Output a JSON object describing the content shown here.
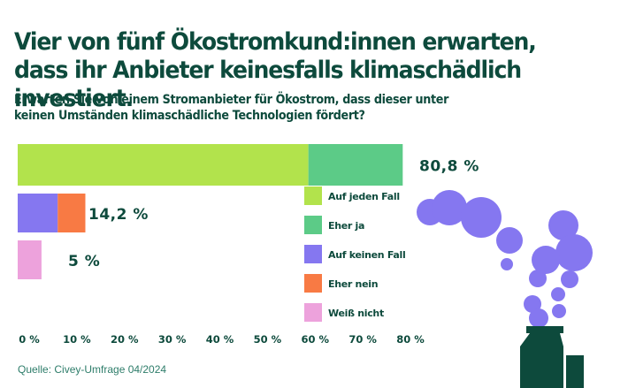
{
  "title": "Vier von fünf Ökostromkund:innen erwarten, dass ihr Anbieter keinesfalls klimaschädlich investiert.",
  "subtitle": "Erwarten Sie von einem Stromanbieter für Ökostrom, dass dieser unter keinen Umständen klimaschädliche Technologien fördert?",
  "source": "Quelle: Civey-Umfrage 04/2024",
  "illustration": "factory-smoke-icon",
  "chart_data": {
    "type": "bar",
    "orientation": "horizontal",
    "stacked": true,
    "xlim": [
      0,
      80
    ],
    "ticks": [
      "0 %",
      "10 %",
      "20 %",
      "30 %",
      "40 %",
      "50 %",
      "60 %",
      "70 %",
      "80 %"
    ],
    "tick_values": [
      0,
      10,
      20,
      30,
      40,
      50,
      60,
      70,
      80
    ],
    "legend_position": "right",
    "bars": [
      {
        "total_label": "80,8 %",
        "segments": [
          {
            "name": "Auf jeden Fall",
            "value": 61.0,
            "color": "#b2e34c"
          },
          {
            "name": "Eher ja",
            "value": 19.8,
            "color": "#5ccb87"
          }
        ]
      },
      {
        "total_label": "14,2 %",
        "segments": [
          {
            "name": "Auf keinen Fall",
            "value": 8.4,
            "color": "#8577f0"
          },
          {
            "name": "Eher nein",
            "value": 5.8,
            "color": "#f87a44"
          }
        ]
      },
      {
        "total_label": "5 %",
        "segments": [
          {
            "name": "Weiß nicht",
            "value": 5.0,
            "color": "#eda2dc"
          }
        ]
      }
    ],
    "legend": [
      {
        "label": "Auf jeden Fall",
        "color": "#b2e34c"
      },
      {
        "label": "Eher ja",
        "color": "#5ccb87"
      },
      {
        "label": "Auf keinen Fall",
        "color": "#8577f0"
      },
      {
        "label": "Eher nein",
        "color": "#f87a44"
      },
      {
        "label": "Weiß nicht",
        "color": "#eda2dc"
      }
    ]
  }
}
